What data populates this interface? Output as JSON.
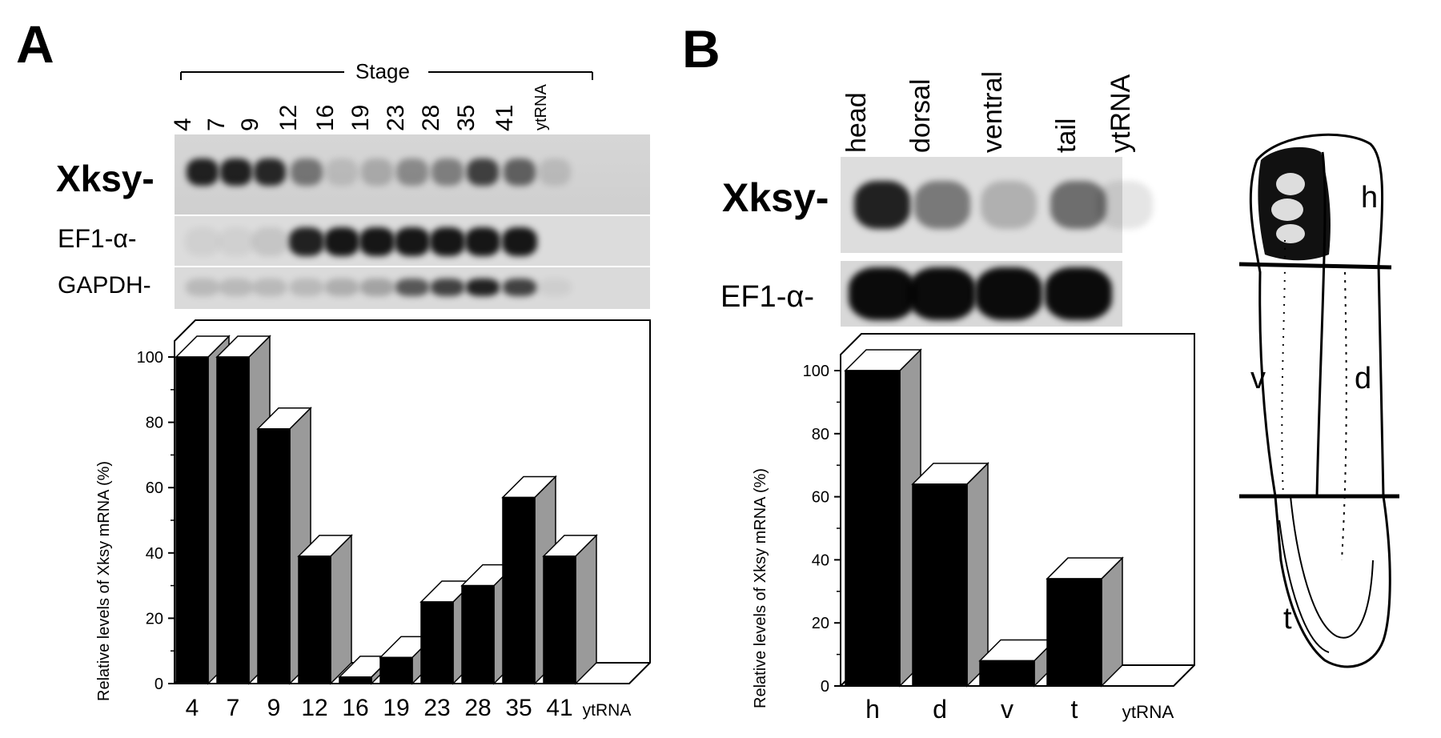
{
  "panelA": {
    "letter": "A",
    "stage_label": "Stage",
    "lanes": [
      "4",
      "7",
      "9",
      "12",
      "16",
      "19",
      "23",
      "28",
      "35",
      "41",
      "ytRNA"
    ],
    "blot_labels": [
      "Xksy-",
      "EF1-α-",
      "GAPDH-"
    ],
    "chart_data": {
      "type": "bar",
      "ylabel": "Relative levels of Xksy mRNA (%)",
      "categories": [
        "4",
        "7",
        "9",
        "12",
        "16",
        "19",
        "23",
        "28",
        "35",
        "41",
        "ytRNA"
      ],
      "values": [
        100,
        100,
        78,
        39,
        2,
        8,
        25,
        30,
        57,
        39,
        0
      ],
      "ylim": [
        0,
        100
      ],
      "yticks": [
        "0",
        "20",
        "40",
        "60",
        "80",
        "100"
      ]
    }
  },
  "panelB": {
    "letter": "B",
    "lanes": [
      "head",
      "dorsal",
      "ventral",
      "tail",
      "ytRNA"
    ],
    "blot_labels": [
      "Xksy-",
      "EF1-α-"
    ],
    "chart_data": {
      "type": "bar",
      "ylabel": "Relative levels of Xksy mRNA (%)",
      "categories": [
        "h",
        "d",
        "v",
        "t",
        "ytRNA"
      ],
      "values": [
        100,
        64,
        8,
        34,
        0
      ],
      "ylim": [
        0,
        100
      ],
      "yticks": [
        "0",
        "20",
        "40",
        "60",
        "80",
        "100"
      ]
    },
    "embryo_labels": [
      "h",
      "v",
      "d",
      "t"
    ]
  }
}
